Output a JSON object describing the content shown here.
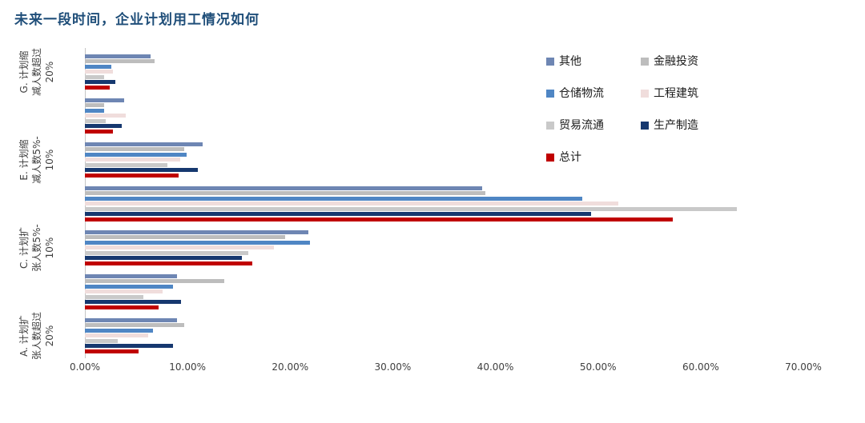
{
  "title": "未来一段时间，企业计划用工情况如何",
  "colors": {
    "title_text": "#1f4e79",
    "axis_line": "#c6c6c6",
    "tick_text": "#404040",
    "category_text": "#3f3f3f"
  },
  "chart_data": {
    "type": "bar",
    "orientation": "horizontal",
    "title": "未来一段时间，企业计划用工情况如何",
    "xlim": [
      0,
      70
    ],
    "x_tick_labels": [
      "0.00%",
      "10.00%",
      "20.00%",
      "30.00%",
      "40.00%",
      "50.00%",
      "60.00%",
      "70.00%"
    ],
    "grid": false,
    "legend_position": "upper-right",
    "categories": [
      {
        "id": "g",
        "label": "G. 计划缩\n减人数超过\n20%"
      },
      {
        "id": "f",
        "label": ""
      },
      {
        "id": "e",
        "label": "E. 计划缩\n减人数5%-\n10%"
      },
      {
        "id": "d",
        "label": ""
      },
      {
        "id": "c",
        "label": "C. 计划扩\n张人数5%-\n10%"
      },
      {
        "id": "b",
        "label": ""
      },
      {
        "id": "a",
        "label": "A. 计划扩\n张人数超过\n20%"
      }
    ],
    "series": [
      {
        "name": "其他",
        "color": "#6e86b3",
        "values": [
          6.4,
          3.8,
          11.5,
          38.7,
          21.8,
          9.0,
          9.0
        ]
      },
      {
        "name": "金融投资",
        "color": "#bdbdbd",
        "values": [
          6.8,
          1.9,
          9.7,
          39.0,
          19.5,
          13.6,
          9.7
        ]
      },
      {
        "name": "仓储物流",
        "color": "#4f86c4",
        "values": [
          2.6,
          1.9,
          9.9,
          48.5,
          21.9,
          8.6,
          6.6
        ]
      },
      {
        "name": "工程建筑",
        "color": "#f0dddc",
        "values": [
          2.7,
          4.0,
          9.3,
          52.0,
          18.4,
          7.6,
          6.2
        ]
      },
      {
        "name": "贸易流通",
        "color": "#c9c9c9",
        "values": [
          1.9,
          2.0,
          8.0,
          63.5,
          15.9,
          5.7,
          3.2
        ]
      },
      {
        "name": "生产制造",
        "color": "#16386f",
        "values": [
          3.0,
          3.6,
          11.0,
          49.3,
          15.3,
          9.4,
          8.6
        ]
      },
      {
        "name": "总计",
        "color": "#c00000",
        "values": [
          2.4,
          2.7,
          9.1,
          57.3,
          16.3,
          7.2,
          5.2
        ]
      }
    ]
  }
}
